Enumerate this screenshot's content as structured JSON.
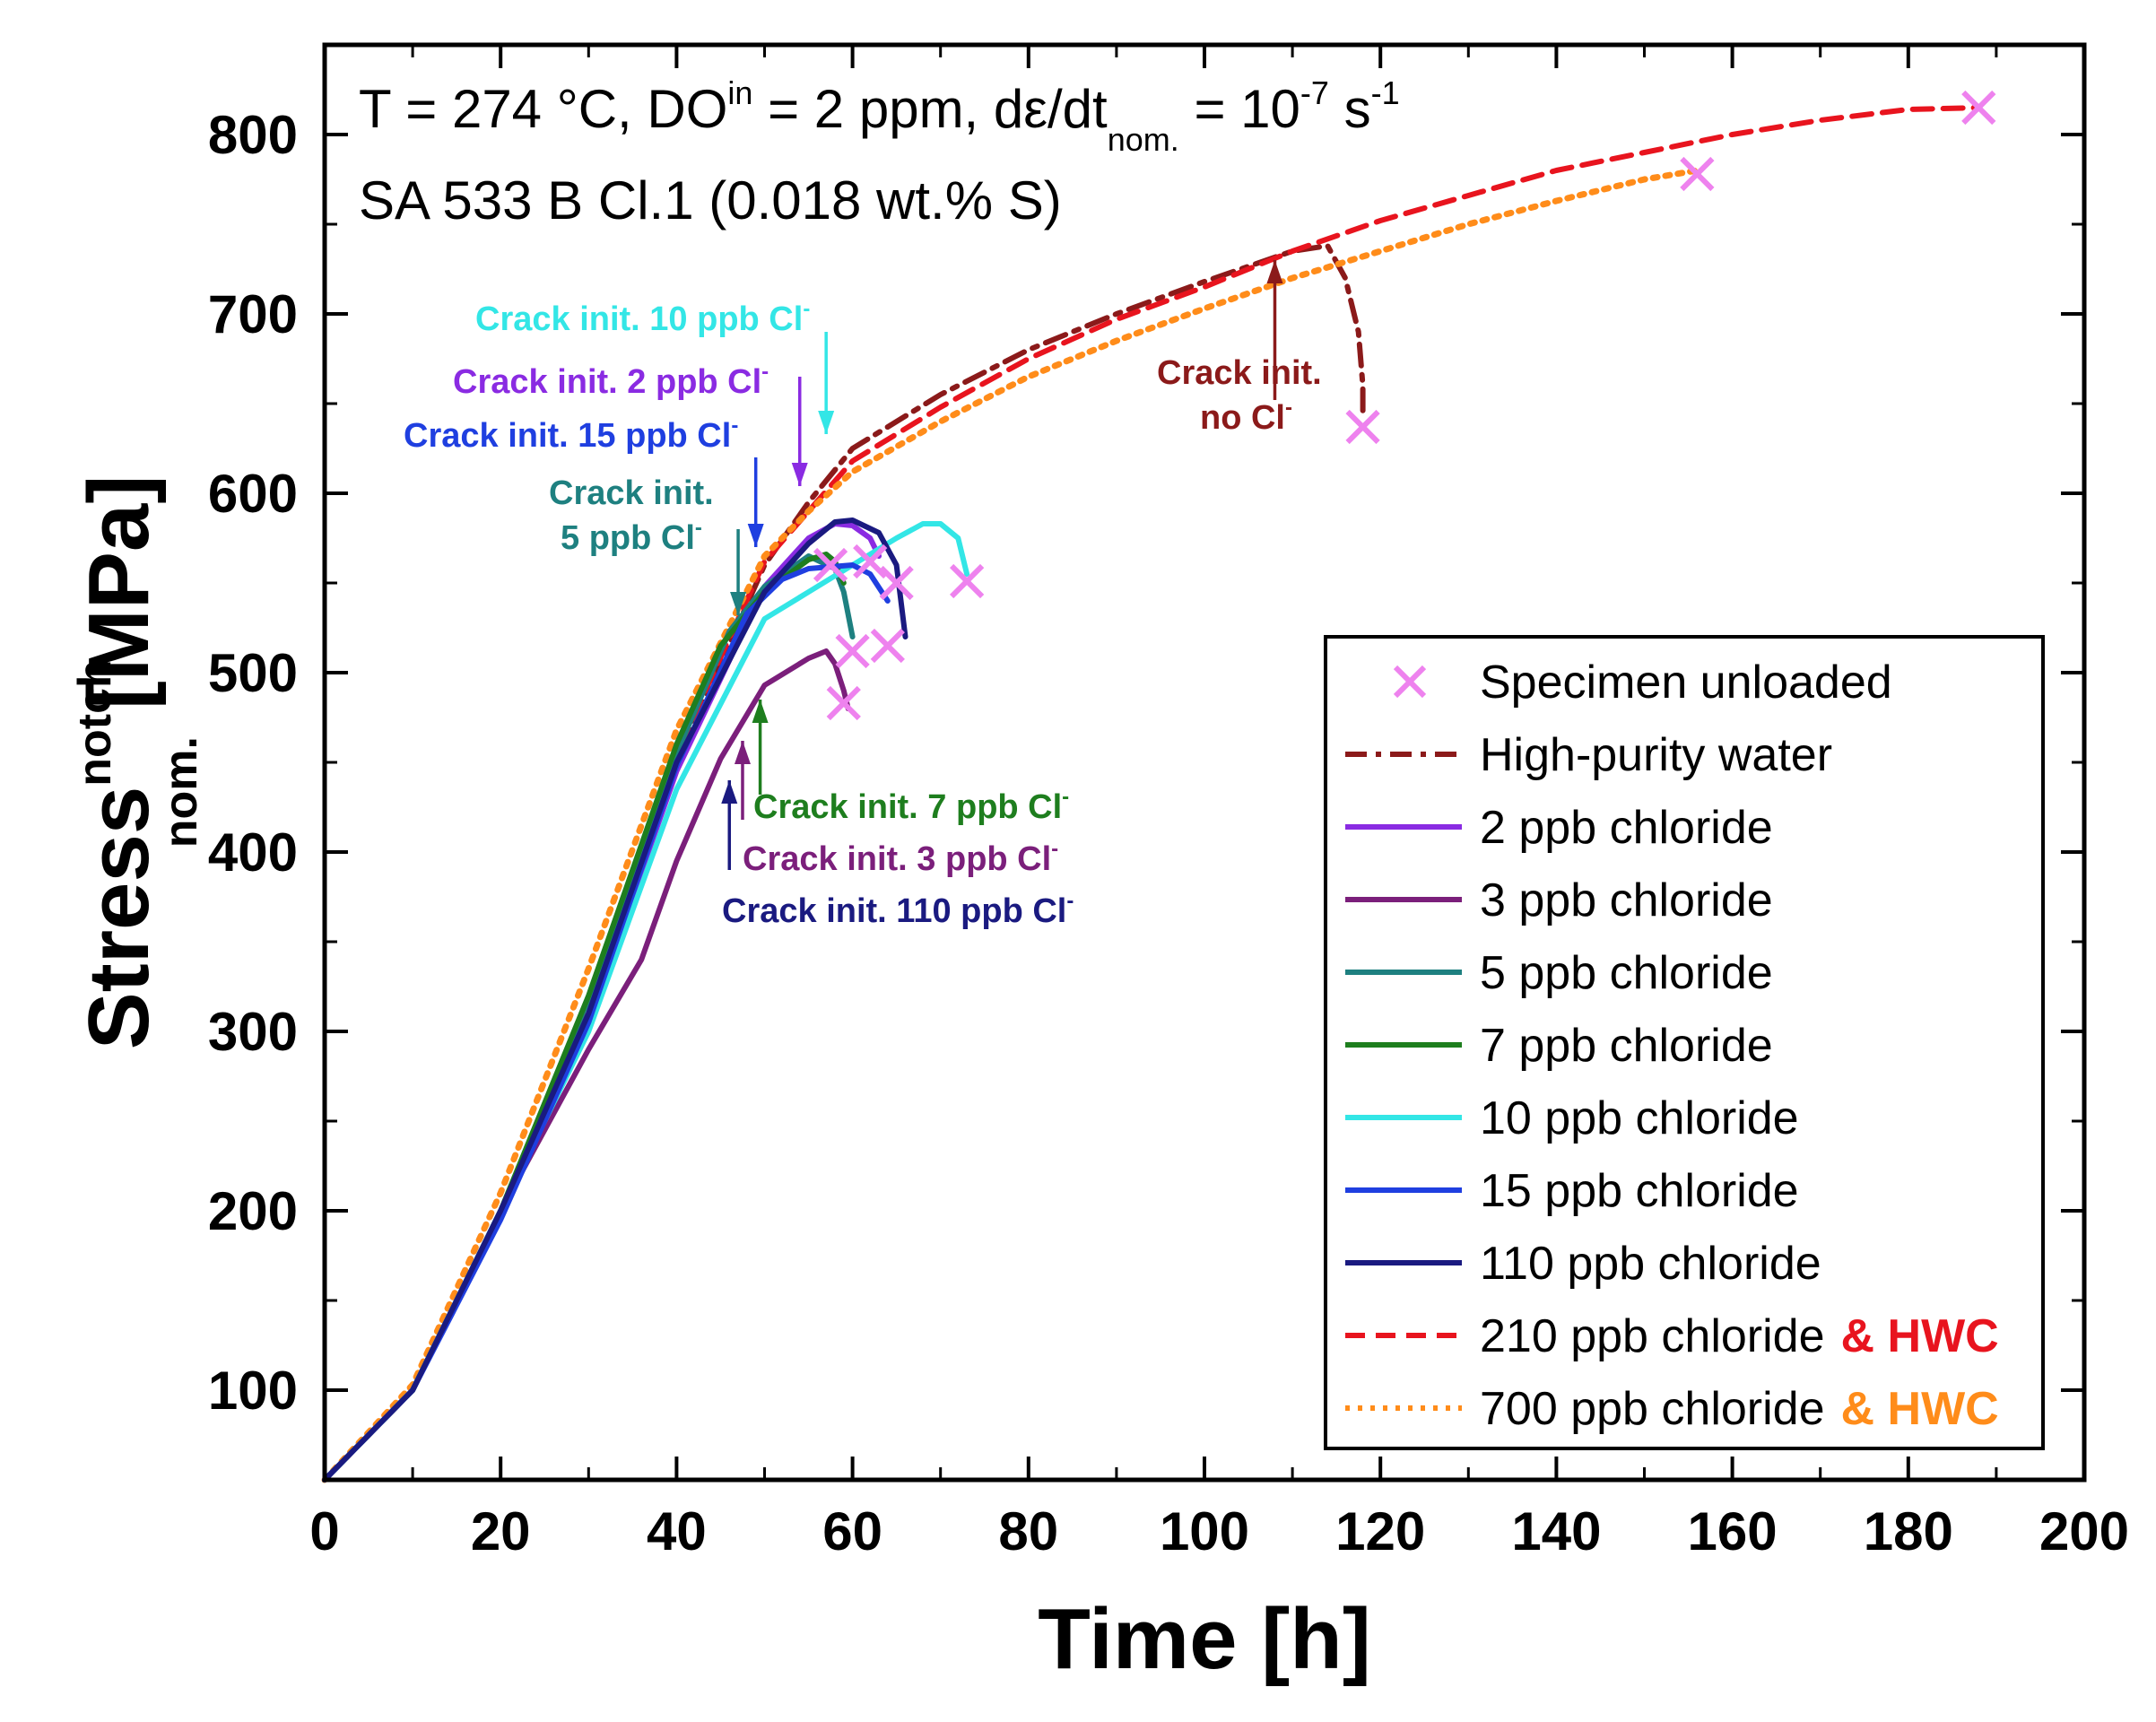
{
  "chart_data": {
    "type": "line",
    "xlabel": "Time [h]",
    "ylabel": {
      "main": "Stress",
      "superscript": "notch",
      "subscript": "nom.",
      "unit": "[MPa]"
    },
    "xlim": [
      0,
      200
    ],
    "ylim": [
      50,
      850
    ],
    "x_ticks": [
      "0",
      "20",
      "40",
      "60",
      "80",
      "100",
      "120",
      "140",
      "160",
      "180",
      "200"
    ],
    "x_tick_values": [
      0,
      20,
      40,
      60,
      80,
      100,
      120,
      140,
      160,
      180,
      200
    ],
    "y_ticks": [
      "100",
      "200",
      "300",
      "400",
      "500",
      "600",
      "700",
      "800"
    ],
    "y_tick_values": [
      100,
      200,
      300,
      400,
      500,
      600,
      700,
      800
    ],
    "conditions": {
      "line1": {
        "a": "T = 274 °C, DO",
        "a_sup": "in",
        "b": " = 2 ppm, dε/dt",
        "b_sub": "nom.",
        "c": " = 10",
        "c_sup": "-7",
        "d": " s",
        "d_sup": "-1"
      },
      "line2": "SA 533 B Cl.1 (0.018 wt.% S)"
    },
    "legend": {
      "placement": "lower-right",
      "entries": [
        {
          "label": "Specimen unloaded",
          "color": "#ee82ee",
          "style": "marker-x"
        },
        {
          "label": "High-purity water",
          "color": "#8b1a1a",
          "style": "dashdot"
        },
        {
          "label": "2 ppb chloride",
          "color": "#8a2be2",
          "style": "solid"
        },
        {
          "label": "3 ppb chloride",
          "color": "#7b1f7b",
          "style": "solid"
        },
        {
          "label": "5 ppb chloride",
          "color": "#1e8080",
          "style": "solid"
        },
        {
          "label": "7 ppb chloride",
          "color": "#1e7e1e",
          "style": "solid"
        },
        {
          "label": "10 ppb chloride",
          "color": "#33e6e6",
          "style": "solid"
        },
        {
          "label": "15 ppb chloride",
          "color": "#1f3fe0",
          "style": "solid"
        },
        {
          "label": "110 ppb chloride",
          "color": "#1a1a80",
          "style": "solid"
        },
        {
          "label": "210 ppb chloride",
          "suffix": "& HWC",
          "color": "#e8141e",
          "suffix_color": "#e8141e",
          "style": "dashed"
        },
        {
          "label": "700 ppb chloride",
          "suffix": "& HWC",
          "color": "#ff8c1a",
          "suffix_color": "#ff8c1a",
          "style": "dotted"
        }
      ]
    },
    "series": [
      {
        "name": "High-purity water",
        "color": "#8b1a1a",
        "style": "dashdot",
        "points": [
          [
            0,
            50
          ],
          [
            10,
            100
          ],
          [
            20,
            200
          ],
          [
            30,
            310
          ],
          [
            40,
            450
          ],
          [
            50,
            560
          ],
          [
            55,
            595
          ],
          [
            60,
            625
          ],
          [
            70,
            655
          ],
          [
            80,
            680
          ],
          [
            90,
            700
          ],
          [
            100,
            718
          ],
          [
            110,
            735
          ],
          [
            114,
            738
          ],
          [
            116,
            720
          ],
          [
            117.5,
            690
          ],
          [
            118,
            660
          ],
          [
            118,
            645
          ]
        ]
      },
      {
        "name": "210 ppb chloride & HWC",
        "color": "#e8141e",
        "style": "dashed",
        "points": [
          [
            0,
            50
          ],
          [
            10,
            100
          ],
          [
            20,
            200
          ],
          [
            30,
            315
          ],
          [
            40,
            455
          ],
          [
            50,
            562
          ],
          [
            55,
            590
          ],
          [
            60,
            618
          ],
          [
            70,
            648
          ],
          [
            80,
            675
          ],
          [
            90,
            697
          ],
          [
            100,
            715
          ],
          [
            110,
            735
          ],
          [
            120,
            752
          ],
          [
            130,
            766
          ],
          [
            140,
            780
          ],
          [
            150,
            790
          ],
          [
            160,
            800
          ],
          [
            170,
            808
          ],
          [
            180,
            814
          ],
          [
            188,
            815
          ]
        ]
      },
      {
        "name": "700 ppb chloride & HWC",
        "color": "#ff8c1a",
        "style": "dotted",
        "points": [
          [
            0,
            50
          ],
          [
            10,
            103
          ],
          [
            20,
            210
          ],
          [
            30,
            335
          ],
          [
            40,
            468
          ],
          [
            50,
            565
          ],
          [
            55,
            590
          ],
          [
            60,
            612
          ],
          [
            70,
            640
          ],
          [
            80,
            665
          ],
          [
            90,
            685
          ],
          [
            100,
            703
          ],
          [
            110,
            720
          ],
          [
            120,
            735
          ],
          [
            130,
            750
          ],
          [
            140,
            763
          ],
          [
            150,
            775
          ],
          [
            156,
            780
          ]
        ]
      },
      {
        "name": "2 ppb chloride",
        "color": "#8a2be2",
        "style": "solid",
        "points": [
          [
            0,
            50
          ],
          [
            10,
            100
          ],
          [
            20,
            200
          ],
          [
            30,
            305
          ],
          [
            40,
            445
          ],
          [
            50,
            548
          ],
          [
            55,
            575
          ],
          [
            58,
            583
          ],
          [
            60,
            582
          ],
          [
            62,
            575
          ],
          [
            63,
            565
          ]
        ]
      },
      {
        "name": "3 ppb chloride",
        "color": "#7b1f7b",
        "style": "solid",
        "points": [
          [
            0,
            50
          ],
          [
            10,
            100
          ],
          [
            20,
            200
          ],
          [
            30,
            290
          ],
          [
            36,
            340
          ],
          [
            40,
            395
          ],
          [
            45,
            452
          ],
          [
            50,
            493
          ],
          [
            55,
            508
          ],
          [
            57,
            512
          ],
          [
            58,
            505
          ],
          [
            59,
            490
          ],
          [
            59.5,
            480
          ]
        ]
      },
      {
        "name": "5 ppb chloride",
        "color": "#1e8080",
        "style": "solid",
        "points": [
          [
            0,
            50
          ],
          [
            10,
            100
          ],
          [
            20,
            200
          ],
          [
            30,
            318
          ],
          [
            40,
            455
          ],
          [
            46,
            523
          ],
          [
            50,
            548
          ],
          [
            55,
            565
          ],
          [
            58,
            558
          ],
          [
            59,
            545
          ],
          [
            60,
            520
          ]
        ]
      },
      {
        "name": "7 ppb chloride",
        "color": "#1e7e1e",
        "style": "solid",
        "points": [
          [
            0,
            50
          ],
          [
            10,
            100
          ],
          [
            20,
            200
          ],
          [
            30,
            320
          ],
          [
            40,
            460
          ],
          [
            45,
            515
          ],
          [
            50,
            545
          ],
          [
            55,
            563
          ],
          [
            57,
            566
          ],
          [
            58,
            562
          ],
          [
            59,
            550
          ]
        ]
      },
      {
        "name": "10 ppb chloride",
        "color": "#33e6e6",
        "style": "solid",
        "points": [
          [
            0,
            50
          ],
          [
            10,
            100
          ],
          [
            20,
            200
          ],
          [
            30,
            300
          ],
          [
            40,
            435
          ],
          [
            50,
            530
          ],
          [
            55,
            545
          ],
          [
            60,
            560
          ],
          [
            65,
            575
          ],
          [
            68,
            583
          ],
          [
            70,
            583
          ],
          [
            72,
            575
          ],
          [
            73,
            555
          ]
        ]
      },
      {
        "name": "15 ppb chloride",
        "color": "#1f3fe0",
        "style": "solid",
        "points": [
          [
            0,
            50
          ],
          [
            10,
            100
          ],
          [
            20,
            195
          ],
          [
            30,
            305
          ],
          [
            40,
            448
          ],
          [
            48,
            533
          ],
          [
            52,
            552
          ],
          [
            55,
            558
          ],
          [
            60,
            560
          ],
          [
            62,
            555
          ],
          [
            64,
            540
          ]
        ]
      },
      {
        "name": "110 ppb chloride",
        "color": "#1a1a80",
        "style": "solid",
        "points": [
          [
            0,
            50
          ],
          [
            10,
            100
          ],
          [
            20,
            200
          ],
          [
            30,
            310
          ],
          [
            40,
            450
          ],
          [
            50,
            545
          ],
          [
            55,
            572
          ],
          [
            58,
            584
          ],
          [
            60,
            585
          ],
          [
            63,
            578
          ],
          [
            65,
            560
          ],
          [
            66,
            520
          ]
        ]
      }
    ],
    "unloaded_markers": [
      [
        188,
        815
      ],
      [
        156,
        778
      ],
      [
        118,
        637
      ],
      [
        57.5,
        560
      ],
      [
        59,
        483
      ],
      [
        60,
        512
      ],
      [
        62,
        562
      ],
      [
        64,
        515
      ],
      [
        65,
        550
      ],
      [
        73,
        551
      ]
    ],
    "annotations": [
      {
        "text": "Crack init. 10 ppb Cl",
        "sup": "-",
        "color": "#33e6e6",
        "target": [
          57,
          633
        ]
      },
      {
        "text": "Crack init. 2 ppb Cl",
        "sup": "-",
        "color": "#8a2be2",
        "target": [
          54,
          604
        ]
      },
      {
        "text": "Crack init. 15 ppb Cl",
        "sup": "-",
        "color": "#1f3fe0",
        "target": [
          49,
          570
        ]
      },
      {
        "text": "Crack init.",
        "line2": "5 ppb Cl",
        "sup": "-",
        "color": "#1e8080",
        "target": [
          47,
          532
        ]
      },
      {
        "text": "Crack init. 7 ppb Cl",
        "sup": "-",
        "color": "#1e7e1e",
        "target": [
          49.5,
          485
        ]
      },
      {
        "text": "Crack init. 3 ppb Cl",
        "sup": "-",
        "color": "#7b1f7b",
        "target": [
          47.5,
          462
        ]
      },
      {
        "text": "Crack init. 110 ppb Cl",
        "sup": "-",
        "color": "#1a1a80",
        "target": [
          46,
          440
        ]
      },
      {
        "text": "Crack init.",
        "line2": "no Cl",
        "sup": "-",
        "color": "#8b1a1a",
        "target": [
          108,
          730
        ]
      }
    ]
  }
}
